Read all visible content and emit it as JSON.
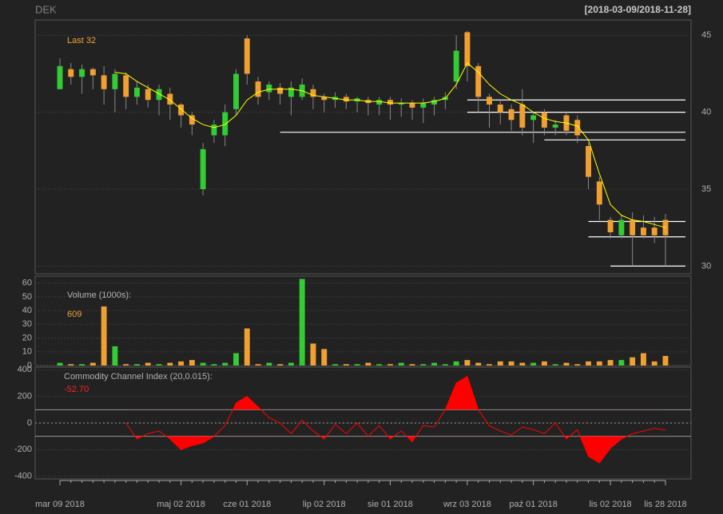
{
  "chart_data": [
    {
      "type": "candlestick",
      "title": "DEK",
      "subtitle": "[2018-03-09/2018-11-28]",
      "annotation": "Last 32",
      "open": [
        41.5,
        42.8,
        42.3,
        42.8,
        42.4,
        41.5,
        42.4,
        41.0,
        41.5,
        40.8,
        41.2,
        40.5,
        39.8,
        35.0,
        38.5,
        38.5,
        40.2,
        44.8,
        42.0,
        41.3,
        41.6,
        41.0,
        41.0,
        41.5,
        41.0,
        40.8,
        41.0,
        40.7,
        40.8,
        40.5,
        40.8,
        40.5,
        40.6,
        40.3,
        40.5,
        40.8,
        42.0,
        45.2,
        43.0,
        41.0,
        40.5,
        40.2,
        40.5,
        39.5,
        40.0,
        39.0,
        39.8,
        39.5,
        37.8,
        35.5,
        33.0,
        32.0,
        33.0,
        32.5,
        32.5,
        33.0
      ],
      "high": [
        43.5,
        43.2,
        43.1,
        42.9,
        43.0,
        42.8,
        42.6,
        42.0,
        41.8,
        41.8,
        41.6,
        40.6,
        40.0,
        38.0,
        39.5,
        40.5,
        42.8,
        45.0,
        42.3,
        42.0,
        41.9,
        42.0,
        42.2,
        41.8,
        41.2,
        41.3,
        41.2,
        41.0,
        41.0,
        41.0,
        41.0,
        40.9,
        40.8,
        40.9,
        41.0,
        41.3,
        45.0,
        45.3,
        43.2,
        41.2,
        40.8,
        40.5,
        41.5,
        40.0,
        40.2,
        39.5,
        40.0,
        39.8,
        38.0,
        35.8,
        33.2,
        33.3,
        33.5,
        33.3,
        33.2,
        33.4
      ],
      "low": [
        41.5,
        41.8,
        41.2,
        41.5,
        40.5,
        40.0,
        40.2,
        40.5,
        40.3,
        39.8,
        39.5,
        39.0,
        38.5,
        34.6,
        38.0,
        37.8,
        39.8,
        41.8,
        40.5,
        40.8,
        40.5,
        39.8,
        40.8,
        40.2,
        40.0,
        40.3,
        40.2,
        40.0,
        39.8,
        39.8,
        39.5,
        39.7,
        39.5,
        39.3,
        39.8,
        40.2,
        41.5,
        42.0,
        40.0,
        39.0,
        39.2,
        38.8,
        38.5,
        38.0,
        38.5,
        38.5,
        38.5,
        38.0,
        35.0,
        33.0,
        31.8,
        31.8,
        30.0,
        31.8,
        31.5,
        30.0
      ],
      "close": [
        43.0,
        42.3,
        42.8,
        42.4,
        41.5,
        42.5,
        41.0,
        41.6,
        40.8,
        41.5,
        40.5,
        39.8,
        39.2,
        37.6,
        39.2,
        40.0,
        42.5,
        42.5,
        41.0,
        41.8,
        41.2,
        41.6,
        41.8,
        41.0,
        40.8,
        41.0,
        40.7,
        40.9,
        40.6,
        40.8,
        40.5,
        40.6,
        40.3,
        40.6,
        40.8,
        41.0,
        44.0,
        43.0,
        41.0,
        40.5,
        40.0,
        39.5,
        39.0,
        39.8,
        39.0,
        39.2,
        38.8,
        38.5,
        35.8,
        34.0,
        32.2,
        33.0,
        32.0,
        32.0,
        32.0,
        32.0
      ],
      "sma": [
        null,
        null,
        null,
        null,
        null,
        42.6,
        42.5,
        42.0,
        41.6,
        41.2,
        40.8,
        40.2,
        39.6,
        39.2,
        39.0,
        39.2,
        39.8,
        40.8,
        41.3,
        41.5,
        41.5,
        41.5,
        41.4,
        41.1,
        41.0,
        40.9,
        40.8,
        40.8,
        40.7,
        40.7,
        40.6,
        40.6,
        40.6,
        40.6,
        40.7,
        40.9,
        41.8,
        43.2,
        42.6,
        41.8,
        41.2,
        40.8,
        40.5,
        40.0,
        39.6,
        39.4,
        39.3,
        39.1,
        38.2,
        36.0,
        34.0,
        33.3,
        33.0,
        32.9,
        32.7,
        32.5
      ],
      "sma_color": "#ffff00",
      "up_color": "#33cc33",
      "down_color": "#f0a030",
      "levels": [
        {
          "value": 40.8,
          "from": 37
        },
        {
          "value": 40.0,
          "from": 37
        },
        {
          "value": 38.7,
          "from": 20
        },
        {
          "value": 38.2,
          "from": 44
        },
        {
          "value": 32.9,
          "from": 48
        },
        {
          "value": 31.9,
          "from": 48
        },
        {
          "value": 30.0,
          "from": 50
        }
      ],
      "ylim": [
        29.5,
        46
      ],
      "yticks": [
        30,
        35,
        40,
        45
      ],
      "grid": true
    },
    {
      "type": "bar",
      "title": "Volume (1000s):",
      "annotation": "609",
      "values": [
        2,
        1,
        1,
        2,
        43,
        14,
        1,
        1,
        2,
        1,
        2,
        3,
        4,
        2,
        1,
        2,
        9,
        27,
        1,
        2,
        1,
        2,
        63,
        16,
        12,
        1,
        1,
        1,
        2,
        1,
        1,
        2,
        1,
        1,
        2,
        1,
        3,
        4,
        2,
        1,
        3,
        3,
        2,
        2,
        3,
        1,
        2,
        1,
        3,
        3,
        4,
        4,
        6,
        9,
        3,
        7
      ],
      "ylim": [
        0,
        65
      ],
      "yticks": [
        0,
        10,
        20,
        30,
        40,
        50,
        60
      ],
      "grid": true
    },
    {
      "type": "line",
      "title": "Commodity Channel Index (20,0.015):",
      "annotation": "-52.70",
      "color": "#ff0000",
      "values": [
        null,
        null,
        null,
        null,
        null,
        null,
        0,
        -120,
        -80,
        -60,
        -120,
        -200,
        -170,
        -150,
        -100,
        -20,
        150,
        200,
        120,
        40,
        0,
        -80,
        20,
        -60,
        -120,
        -10,
        -80,
        0,
        -100,
        -20,
        -120,
        -60,
        -140,
        -20,
        -30,
        100,
        300,
        350,
        100,
        -20,
        -60,
        -90,
        -30,
        -50,
        -80,
        0,
        -120,
        -50,
        -250,
        -300,
        -190,
        -120,
        -80,
        -60,
        -40,
        -52.7
      ],
      "bands": [
        -100,
        100
      ],
      "categories": [
        "mar 09 2018",
        null,
        null,
        null,
        null,
        null,
        null,
        null,
        null,
        null,
        null,
        "maj 02 2018",
        null,
        null,
        null,
        null,
        null,
        "cze 01 2018",
        null,
        null,
        null,
        null,
        null,
        null,
        "lip 02 2018",
        null,
        null,
        null,
        null,
        null,
        "sie 01 2018",
        null,
        null,
        null,
        null,
        null,
        null,
        "wrz 03 2018",
        null,
        null,
        null,
        null,
        null,
        "paź 01 2018",
        null,
        null,
        null,
        null,
        null,
        null,
        "lis 02 2018",
        null,
        null,
        null,
        null,
        "lis 28 2018"
      ],
      "ylim": [
        -420,
        420
      ],
      "yticks": [
        -400,
        -200,
        0,
        200,
        400
      ],
      "grid": true
    }
  ]
}
